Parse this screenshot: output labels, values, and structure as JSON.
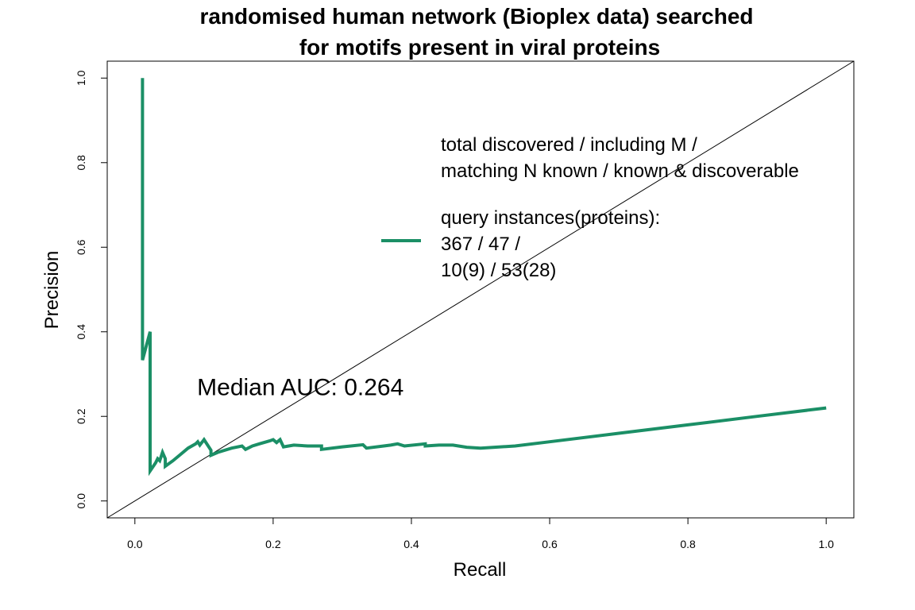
{
  "chart_data": {
    "type": "line",
    "title_lines": [
      "randomised human network (Bioplex data) searched",
      "for motifs present in viral proteins"
    ],
    "xlabel": "Recall",
    "ylabel": "Precision",
    "xlim": [
      -0.04,
      1.04
    ],
    "ylim": [
      -0.04,
      1.04
    ],
    "xticks": [
      0.0,
      0.2,
      0.4,
      0.6,
      0.8,
      1.0
    ],
    "xtick_labels": [
      "0.0",
      "0.2",
      "0.4",
      "0.6",
      "0.8",
      "1.0"
    ],
    "yticks": [
      0.0,
      0.2,
      0.4,
      0.6,
      0.8,
      1.0
    ],
    "ytick_labels": [
      "0.0",
      "0.2",
      "0.4",
      "0.6",
      "0.8",
      "1.0"
    ],
    "grid": false,
    "reference_line": {
      "x": [
        -0.04,
        1.04
      ],
      "y": [
        -0.04,
        1.04
      ],
      "color": "#000000"
    },
    "series": [
      {
        "color": "#1b8f66",
        "x": [
          0.011,
          0.011,
          0.011,
          0.022,
          0.022,
          0.022,
          0.03,
          0.033,
          0.036,
          0.04,
          0.044,
          0.044,
          0.055,
          0.066,
          0.077,
          0.088,
          0.091,
          0.094,
          0.1,
          0.11,
          0.11,
          0.12,
          0.14,
          0.155,
          0.16,
          0.17,
          0.18,
          0.195,
          0.2,
          0.205,
          0.21,
          0.215,
          0.23,
          0.25,
          0.27,
          0.27,
          0.3,
          0.33,
          0.335,
          0.36,
          0.37,
          0.38,
          0.39,
          0.42,
          0.42,
          0.44,
          0.46,
          0.48,
          0.5,
          0.52,
          0.55,
          0.6,
          0.7,
          0.8,
          0.9,
          1.0
        ],
        "y": [
          0.333,
          1.0,
          0.333,
          0.4,
          0.13,
          0.071,
          0.09,
          0.1,
          0.095,
          0.115,
          0.1,
          0.082,
          0.095,
          0.11,
          0.125,
          0.135,
          0.14,
          0.132,
          0.145,
          0.12,
          0.108,
          0.115,
          0.125,
          0.13,
          0.122,
          0.13,
          0.135,
          0.142,
          0.145,
          0.138,
          0.145,
          0.128,
          0.132,
          0.13,
          0.13,
          0.122,
          0.128,
          0.133,
          0.125,
          0.13,
          0.132,
          0.135,
          0.13,
          0.135,
          0.13,
          0.132,
          0.132,
          0.127,
          0.125,
          0.127,
          0.13,
          0.14,
          0.16,
          0.18,
          0.2,
          0.22
        ]
      }
    ],
    "legend": {
      "placement": "upper-right",
      "header_lines": [
        "total discovered / including M /",
        "matching N known / known & discoverable"
      ],
      "entry_lines": [
        "query instances(proteins):",
        "367 / 47 /",
        "10(9) / 53(28)"
      ]
    },
    "annotations": [
      {
        "text": "Median AUC: 0.264",
        "x": 0.09,
        "y": 0.25
      }
    ]
  }
}
